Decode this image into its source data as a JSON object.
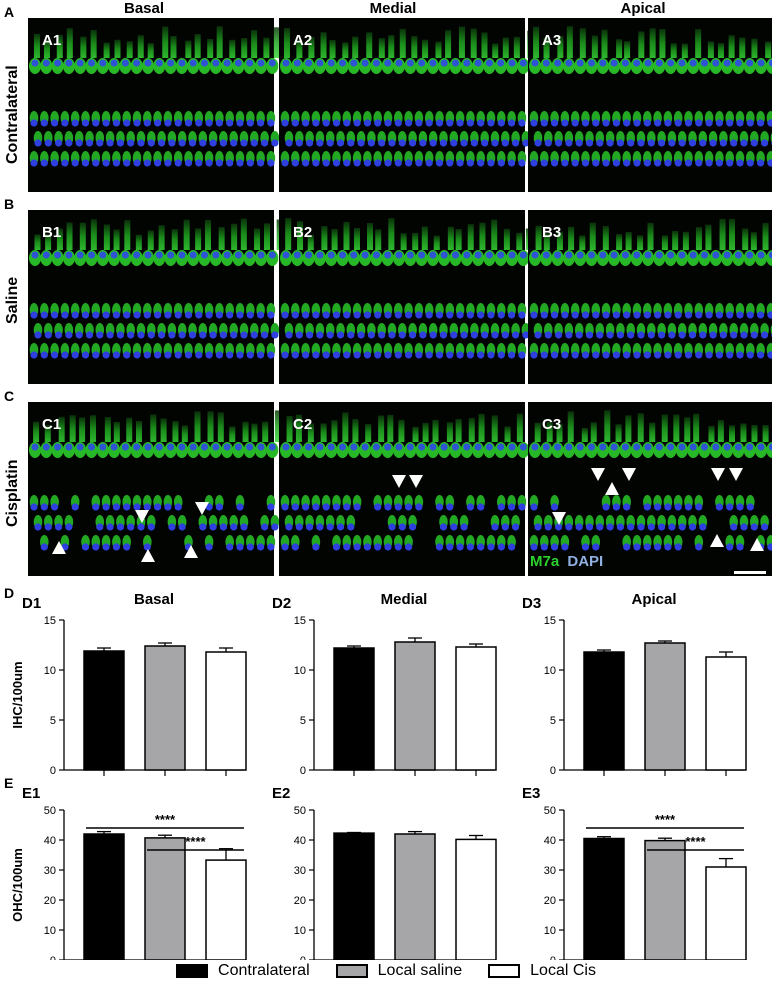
{
  "columns": [
    "Basal",
    "Medial",
    "Apical"
  ],
  "rows": [
    {
      "letter": "A",
      "side_label": "Contralateral",
      "panels": [
        "A1",
        "A2",
        "A3"
      ]
    },
    {
      "letter": "B",
      "side_label": "Saline",
      "panels": [
        "B1",
        "B2",
        "B3"
      ]
    },
    {
      "letter": "C",
      "side_label": "Cisplatin",
      "panels": [
        "C1",
        "C2",
        "C3"
      ]
    }
  ],
  "stain_legend": {
    "m7a": "M7a",
    "dapi": "DAPI"
  },
  "colors": {
    "m7a": "#2bd12b",
    "dapi": "#3d4cff",
    "dapi_text": "#8fb0e0",
    "bar_contralateral": "#000000",
    "bar_saline": "#a6a6a8",
    "bar_cis": "#ffffff"
  },
  "row_d_letter": "D",
  "row_e_letter": "E",
  "legend": [
    "Contralateral",
    "Local saline",
    "Local Cis"
  ],
  "chart_data": [
    {
      "id": "D1",
      "panel": "D1",
      "type": "bar",
      "title": "Basal",
      "ylabel": "IHC/100um",
      "ylim": [
        0,
        15
      ],
      "yticks": [
        0,
        5,
        10,
        15
      ],
      "categories": [
        "Contralateral",
        "Local saline",
        "Local Cis"
      ],
      "values": [
        11.9,
        12.4,
        11.8
      ],
      "errors": [
        0.3,
        0.3,
        0.4
      ],
      "significance": []
    },
    {
      "id": "D2",
      "panel": "D2",
      "type": "bar",
      "title": "Medial",
      "ylabel": "",
      "ylim": [
        0,
        15
      ],
      "yticks": [
        0,
        5,
        10,
        15
      ],
      "categories": [
        "Contralateral",
        "Local saline",
        "Local Cis"
      ],
      "values": [
        12.2,
        12.8,
        12.3
      ],
      "errors": [
        0.2,
        0.4,
        0.3
      ],
      "significance": []
    },
    {
      "id": "D3",
      "panel": "D3",
      "type": "bar",
      "title": "Apical",
      "ylabel": "",
      "ylim": [
        0,
        15
      ],
      "yticks": [
        0,
        5,
        10,
        15
      ],
      "categories": [
        "Contralateral",
        "Local saline",
        "Local Cis"
      ],
      "values": [
        11.8,
        12.7,
        11.3
      ],
      "errors": [
        0.2,
        0.2,
        0.5
      ],
      "significance": []
    },
    {
      "id": "E1",
      "panel": "E1",
      "type": "bar",
      "title": "",
      "ylabel": "OHC/100um",
      "ylim": [
        0,
        50
      ],
      "yticks": [
        0,
        10,
        20,
        30,
        40,
        50
      ],
      "categories": [
        "Contralateral",
        "Local saline",
        "Local Cis"
      ],
      "values": [
        42,
        40.7,
        33.3
      ],
      "errors": [
        0.8,
        0.9,
        3.8
      ],
      "significance": [
        {
          "from": 0,
          "to": 2,
          "label": "****"
        },
        {
          "from": 1,
          "to": 2,
          "label": "****"
        }
      ]
    },
    {
      "id": "E2",
      "panel": "E2",
      "type": "bar",
      "title": "",
      "ylabel": "",
      "ylim": [
        0,
        50
      ],
      "yticks": [
        0,
        10,
        20,
        30,
        40,
        50
      ],
      "categories": [
        "Contralateral",
        "Local saline",
        "Local Cis"
      ],
      "values": [
        42.3,
        42,
        40.2
      ],
      "errors": [
        0.2,
        0.8,
        1.3
      ],
      "significance": []
    },
    {
      "id": "E3",
      "panel": "E3",
      "type": "bar",
      "title": "",
      "ylabel": "",
      "ylim": [
        0,
        50
      ],
      "yticks": [
        0,
        10,
        20,
        30,
        40,
        50
      ],
      "categories": [
        "Contralateral",
        "Local saline",
        "Local Cis"
      ],
      "values": [
        40.5,
        39.8,
        31
      ],
      "errors": [
        0.6,
        0.8,
        2.8
      ],
      "significance": [
        {
          "from": 0,
          "to": 2,
          "label": "****"
        },
        {
          "from": 1,
          "to": 2,
          "label": "****"
        }
      ]
    }
  ]
}
